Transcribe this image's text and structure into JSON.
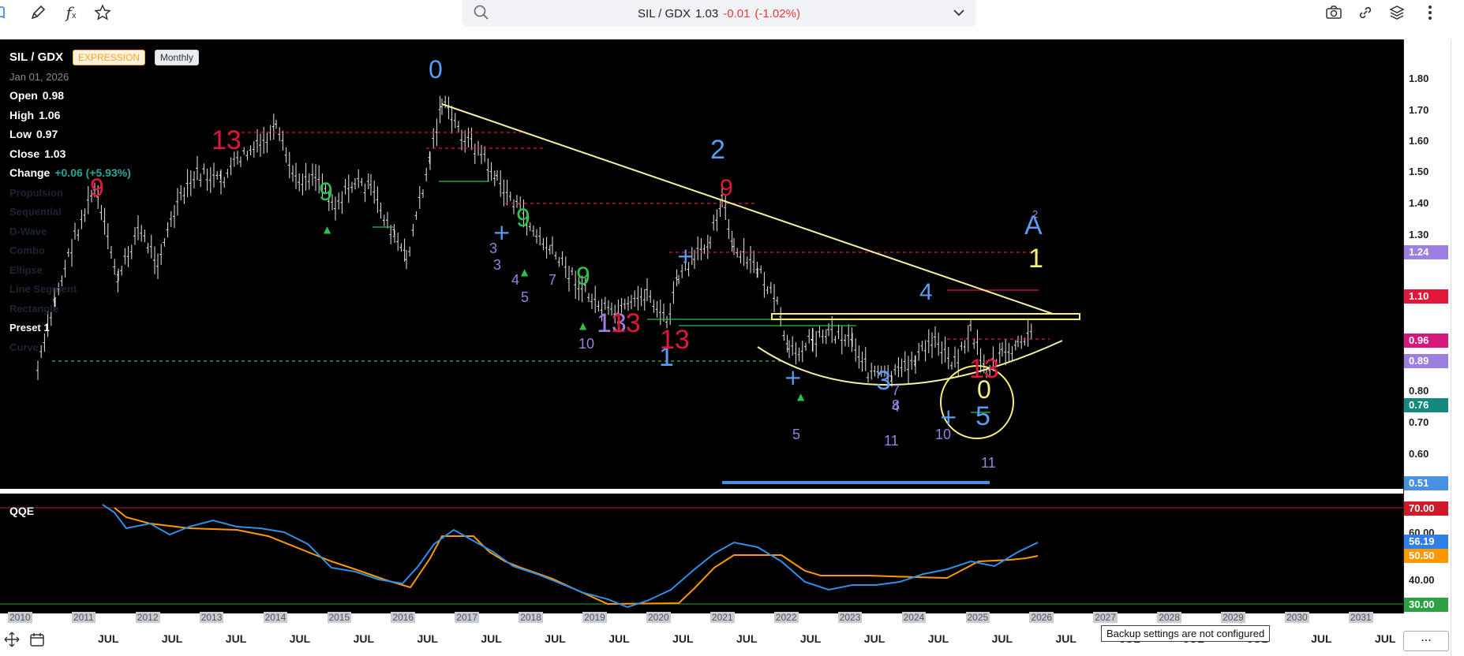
{
  "toolbar": {
    "icons": [
      "book-icon",
      "pencil-icon",
      "function-icon",
      "star-icon",
      "camera-icon",
      "link-icon",
      "layers-icon",
      "more-vertical-icon"
    ],
    "function_glyph": "f",
    "function_sub": "x"
  },
  "search": {
    "symbol_text": "SIL / GDX",
    "price": "1.03",
    "change": "-0.01",
    "change_pct": "(-1.02%)"
  },
  "legend": {
    "symbol": "SIL / GDX",
    "badge_expression": "EXPRESSION",
    "badge_interval": "Monthly",
    "date": "Jan 01, 2026",
    "open_label": "Open",
    "open_value": "0.98",
    "high_label": "High",
    "high_value": "1.06",
    "low_label": "Low",
    "low_value": "0.97",
    "close_label": "Close",
    "close_value": "1.03",
    "change_label": "Change",
    "change_value": "+0.06 (+5.93%)",
    "indicators": [
      "Propulsion",
      "Sequential",
      "D-Wave",
      "Combo",
      "Ellipse",
      "Line Segment",
      "Rectangle",
      "Preset 1",
      "Curve"
    ]
  },
  "qqe": {
    "title": "QQE"
  },
  "price_axis": {
    "ticks": [
      "1.80",
      "1.70",
      "1.60",
      "1.50",
      "1.40",
      "1.30",
      "0.80",
      "0.70",
      "0.60"
    ],
    "tags": [
      {
        "text": "1.24",
        "color": "#9c7fe0"
      },
      {
        "text": "1.10",
        "color": "#e0173a"
      },
      {
        "text": "0.96",
        "color": "#d6177d"
      },
      {
        "text": "0.89",
        "color": "#9c7fe0"
      },
      {
        "text": "0.76",
        "color": "#138a7e"
      },
      {
        "text": "0.51",
        "color": "#4a90e2"
      }
    ],
    "qqe_ticks": [
      "60.00",
      "40.00"
    ],
    "qqe_tags": [
      {
        "text": "70.00",
        "color": "#d01a2a"
      },
      {
        "text": "56.19",
        "color": "#2f7fe6"
      },
      {
        "text": "50.50",
        "color": "#ff9800"
      },
      {
        "text": "30.00",
        "color": "#2ea043"
      }
    ]
  },
  "time_axis": {
    "years": [
      "2010",
      "2011",
      "2012",
      "2013",
      "2014",
      "2015",
      "2016",
      "2017",
      "2018",
      "2019",
      "2020",
      "2021",
      "2022",
      "2023",
      "2024",
      "2025",
      "2026",
      "2027",
      "2028",
      "2029",
      "2030",
      "2031"
    ],
    "jul_label": "JUL",
    "tooltip": "Backup settings are not configured",
    "more": "..."
  },
  "annotations": {
    "wave": [
      "0",
      "1",
      "2",
      "3",
      "4",
      "5",
      "A",
      "0",
      "1"
    ],
    "counts": [
      "13",
      "9",
      "9",
      "9",
      "13",
      "13",
      "13",
      "9",
      "9",
      "13",
      "3",
      "4",
      "5",
      "7",
      "8",
      "10",
      "11",
      "2"
    ]
  },
  "colors": {
    "background": "#000000",
    "trendline": "#f5f0a0",
    "wave_blue": "#5b9cf0",
    "count_red": "#e0173a",
    "count_green": "#2ec24a",
    "count_purple": "#9c7fe0",
    "qqe_fast": "#2f8fe6",
    "qqe_slow": "#ff9800",
    "yellow": "#f7f07a"
  }
}
